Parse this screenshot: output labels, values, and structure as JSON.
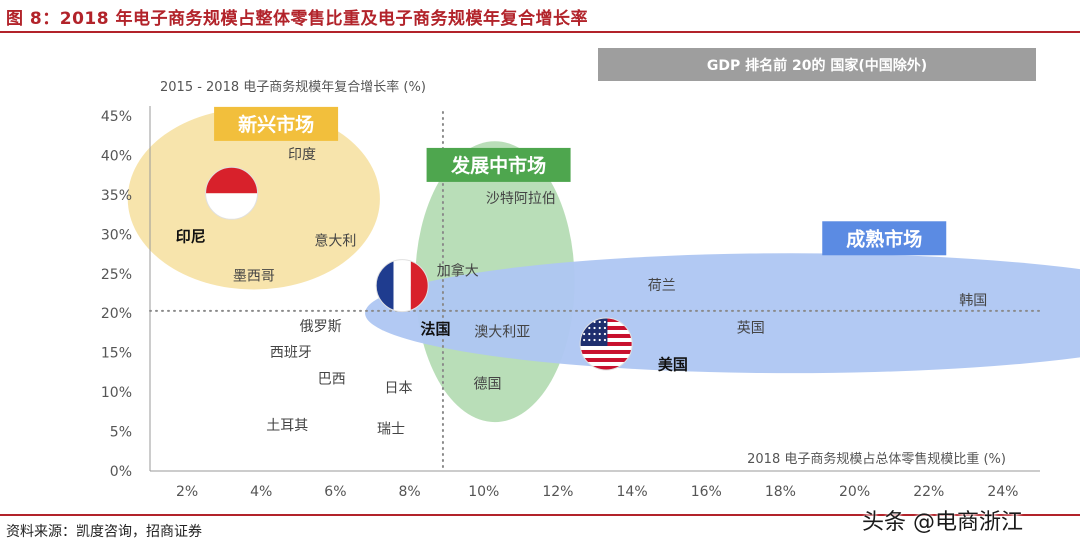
{
  "header": {
    "title": "图 8：2018 年电子商务规模占整体零售比重及电子商务规模年复合增长率"
  },
  "footer": {
    "source": "资料来源：凯度咨询，招商证券",
    "watermark": "头条 @电商浙江"
  },
  "chart_data": {
    "type": "scatter",
    "title": "",
    "xlabel": "2018 电子商务规模占总体零售规模比重 (%)",
    "ylabel": "2015 - 2018 电子商务规模年复合增长率 (%)",
    "xlim": [
      1,
      25
    ],
    "ylim": [
      0,
      45
    ],
    "x_ticks": [
      {
        "value": 2,
        "label": "2%"
      },
      {
        "value": 4,
        "label": "4%"
      },
      {
        "value": 6,
        "label": "6%"
      },
      {
        "value": 8,
        "label": "8%"
      },
      {
        "value": 10,
        "label": "10%"
      },
      {
        "value": 12,
        "label": "12%"
      },
      {
        "value": 14,
        "label": "14%"
      },
      {
        "value": 16,
        "label": "16%"
      },
      {
        "value": 18,
        "label": "18%"
      },
      {
        "value": 20,
        "label": "20%"
      },
      {
        "value": 22,
        "label": "22%"
      },
      {
        "value": 24,
        "label": "24%"
      }
    ],
    "y_ticks": [
      {
        "value": 0,
        "label": "0%"
      },
      {
        "value": 5,
        "label": "5%"
      },
      {
        "value": 10,
        "label": "10%"
      },
      {
        "value": 15,
        "label": "15%"
      },
      {
        "value": 20,
        "label": "20%"
      },
      {
        "value": 25,
        "label": "25%"
      },
      {
        "value": 30,
        "label": "30%"
      },
      {
        "value": 35,
        "label": "35%"
      },
      {
        "value": 40,
        "label": "40%"
      },
      {
        "value": 45,
        "label": "45%"
      }
    ],
    "reference_lines": {
      "x": 8.9,
      "y": 20.3
    },
    "legend_box": "GDP 排名前 20的 国家(中国除外)",
    "regions": [
      {
        "label": "新兴市场",
        "color": "#f7e3a8",
        "label_color": "#f2bf3c",
        "cx": 3.8,
        "cy": 34.5,
        "rx": 3.4,
        "ry": 11.5,
        "label_x": 4.4,
        "label_y": 44.0
      },
      {
        "label": "发展中市场",
        "color": "#b5dcb4",
        "label_color": "#4ea64e",
        "cx": 10.3,
        "cy": 24.0,
        "rx": 2.15,
        "ry": 17.8,
        "label_x": 10.4,
        "label_y": 38.8
      },
      {
        "label": "成熟市场",
        "color": "#aec6f2",
        "label_color": "#5b8be3",
        "cx": 18.3,
        "cy": 20.0,
        "rx": 11.5,
        "ry": 7.6,
        "label_x": 20.8,
        "label_y": 29.5
      }
    ],
    "points": [
      {
        "name": "印度",
        "x": 5.1,
        "y": 40.2
      },
      {
        "name": "印尼",
        "x": 3.2,
        "y": 35.2,
        "flag": "indonesia",
        "label_x": 2.1,
        "label_y": 29.7,
        "bold": true
      },
      {
        "name": "意大利",
        "x": 6.0,
        "y": 29.2
      },
      {
        "name": "墨西哥",
        "x": 3.8,
        "y": 24.8
      },
      {
        "name": "沙特阿拉伯",
        "x": 11.0,
        "y": 34.6
      },
      {
        "name": "法国",
        "x": 7.8,
        "y": 23.5,
        "flag": "france",
        "label_x": 8.7,
        "label_y": 18.0,
        "bold": true
      },
      {
        "name": "加拿大",
        "x": 9.3,
        "y": 25.4
      },
      {
        "name": "澳大利亚",
        "x": 10.5,
        "y": 17.7
      },
      {
        "name": "德国",
        "x": 10.1,
        "y": 11.1
      },
      {
        "name": "俄罗斯",
        "x": 5.6,
        "y": 18.4
      },
      {
        "name": "西班牙",
        "x": 4.8,
        "y": 15.1
      },
      {
        "name": "巴西",
        "x": 5.9,
        "y": 11.7
      },
      {
        "name": "日本",
        "x": 7.7,
        "y": 10.6
      },
      {
        "name": "土耳其",
        "x": 4.7,
        "y": 5.8
      },
      {
        "name": "瑞士",
        "x": 7.5,
        "y": 5.4
      },
      {
        "name": "荷兰",
        "x": 14.8,
        "y": 23.6
      },
      {
        "name": "英国",
        "x": 17.2,
        "y": 18.2
      },
      {
        "name": "韩国",
        "x": 23.2,
        "y": 21.7
      },
      {
        "name": "美国",
        "x": 13.3,
        "y": 16.1,
        "flag": "usa",
        "label_x": 15.1,
        "label_y": 13.5,
        "bold": true
      }
    ]
  }
}
